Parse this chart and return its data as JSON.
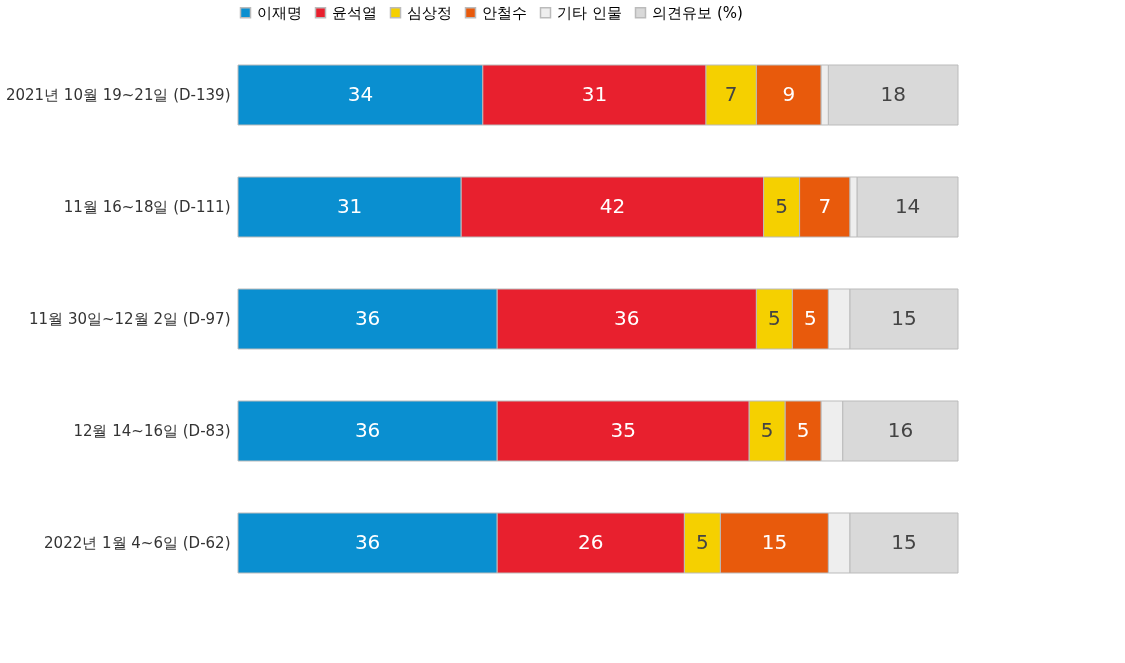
{
  "chart_data": {
    "type": "bar",
    "orientation": "horizontal",
    "stacked": true,
    "legend": "top",
    "legend_title": "(%)",
    "categories": [
      "2021년 10월 19~21일 (D-139)",
      "11월 16~18일 (D-111)",
      "11월 30일~12월 2일 (D-97)",
      "12월 14~16일 (D-83)",
      "2022년 1월 4~6일 (D-62)"
    ],
    "series": [
      {
        "name": "이재명",
        "color": "#0a8fd0",
        "values": [
          34,
          31,
          36,
          36,
          36
        ],
        "value_labels": [
          "34",
          "31",
          "36",
          "36",
          "36"
        ]
      },
      {
        "name": "윤석열",
        "color": "#e8202e",
        "values": [
          31,
          42,
          36,
          35,
          26
        ],
        "value_labels": [
          "31",
          "42",
          "36",
          "35",
          "26"
        ]
      },
      {
        "name": "심상정",
        "color": "#f5d000",
        "values": [
          7,
          5,
          5,
          5,
          5
        ],
        "value_labels": [
          "7",
          "5",
          "5",
          "5",
          "5"
        ]
      },
      {
        "name": "안철수",
        "color": "#e85a0c",
        "values": [
          9,
          7,
          5,
          5,
          15
        ],
        "value_labels": [
          "9",
          "7",
          "5",
          "5",
          "15"
        ]
      },
      {
        "name": "기타 인물",
        "color": "#eeeeee",
        "values": [
          1,
          1,
          3,
          3,
          3
        ],
        "value_labels": [
          null,
          null,
          null,
          null,
          null
        ]
      },
      {
        "name": "의견유보",
        "color": "#d9d9d9",
        "values": [
          18,
          14,
          15,
          16,
          15
        ],
        "value_labels": [
          "18",
          "14",
          "15",
          "16",
          "15"
        ]
      }
    ]
  }
}
